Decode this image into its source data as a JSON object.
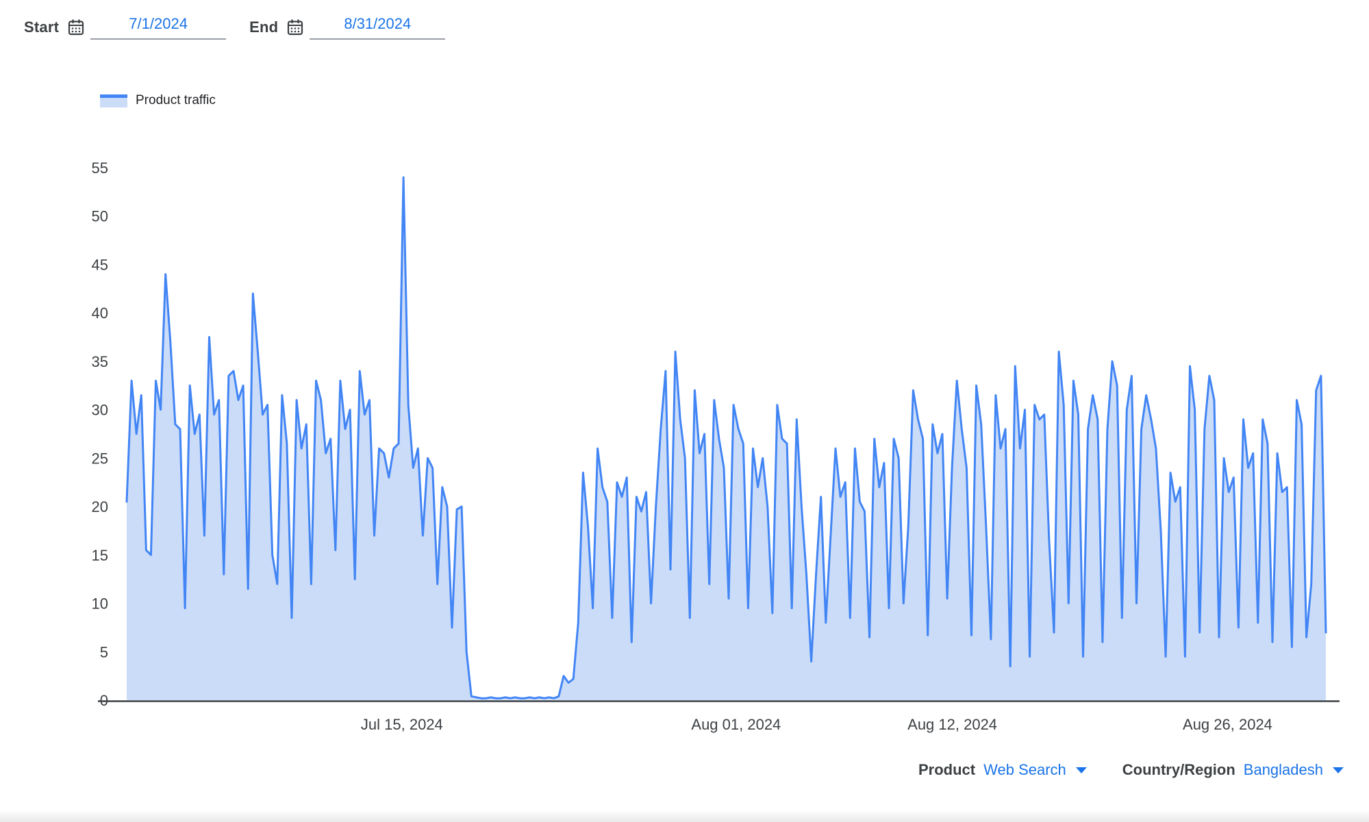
{
  "date_range": {
    "start_label": "Start",
    "start_value": "7/1/2024",
    "end_label": "End",
    "end_value": "8/31/2024"
  },
  "legend": {
    "label": "Product traffic"
  },
  "footer": {
    "product_label": "Product",
    "product_value": "Web Search",
    "region_label": "Country/Region",
    "region_value": "Bangladesh"
  },
  "icons": {
    "calendar": "calendar-icon",
    "dropdown": "chevron-down-icon"
  },
  "colors": {
    "line": "#4285f4",
    "fill": "#cbdcf9",
    "link_blue": "#1a73e8",
    "axis_text": "#3c4043",
    "baseline": "#3c4043"
  },
  "chart_data": {
    "type": "area",
    "title": "Product traffic",
    "xlabel": "",
    "ylabel": "",
    "x_start_date": "7/1/2024",
    "x_end_date": "8/31/2024",
    "days": 62,
    "points_per_day": 4,
    "ylim": [
      0,
      55
    ],
    "grid": false,
    "legend_position": "top-left",
    "y_ticks": [
      0,
      5,
      10,
      15,
      20,
      25,
      30,
      35,
      40,
      45,
      50,
      55
    ],
    "x_tick_labels": [
      {
        "label": "Jul 15, 2024",
        "day": 14
      },
      {
        "label": "Aug 01, 2024",
        "day": 31
      },
      {
        "label": "Aug 12, 2024",
        "day": 42
      },
      {
        "label": "Aug 26, 2024",
        "day": 56
      }
    ],
    "values": [
      20.5,
      33,
      27.5,
      31.5,
      15.5,
      15,
      33,
      30,
      44,
      37,
      28.5,
      28,
      9.5,
      32.5,
      27.5,
      29.5,
      17,
      37.5,
      29.5,
      31,
      13,
      33.5,
      34,
      31,
      32.5,
      11.5,
      42,
      36,
      29.5,
      30.5,
      15,
      12,
      31.5,
      26.5,
      8.5,
      31,
      26,
      28.5,
      12,
      33,
      31,
      25.5,
      27,
      15.5,
      33,
      28,
      30,
      12.5,
      34,
      29.5,
      31,
      17,
      26,
      25.5,
      23,
      26,
      26.5,
      54,
      30.5,
      24,
      26,
      17,
      25,
      24,
      12,
      22,
      20,
      7.5,
      19.7,
      20,
      5,
      0.4,
      0.3,
      0.2,
      0.2,
      0.3,
      0.2,
      0.2,
      0.3,
      0.2,
      0.3,
      0.2,
      0.2,
      0.3,
      0.2,
      0.3,
      0.2,
      0.3,
      0.2,
      0.4,
      2.5,
      1.8,
      2.2,
      8,
      23.5,
      18,
      9.5,
      26,
      22,
      20.5,
      8.5,
      22.5,
      21,
      23,
      6,
      21,
      19.5,
      21.5,
      10,
      20,
      28,
      34,
      13.5,
      36,
      29,
      25,
      8.5,
      32,
      25.5,
      27.5,
      12,
      31,
      27,
      24,
      10.5,
      30.5,
      28,
      26.5,
      9.5,
      26,
      22,
      25,
      20,
      9,
      30.5,
      27,
      26.5,
      9.5,
      29,
      20,
      13,
      4,
      13,
      21,
      8,
      17,
      26,
      21,
      22.5,
      8.5,
      26,
      20.5,
      19.5,
      6.5,
      27,
      22,
      24.5,
      9.5,
      27,
      25,
      10,
      18,
      32,
      29,
      27,
      6.7,
      28.5,
      25.5,
      27.5,
      10.5,
      24,
      33,
      28,
      24,
      6.7,
      32.5,
      28.5,
      18,
      6.3,
      31.5,
      26,
      28,
      3.5,
      34.5,
      26,
      30,
      4.5,
      30.5,
      29,
      29.5,
      16.5,
      7,
      36,
      30.5,
      10,
      33,
      29.5,
      4.5,
      28,
      31.5,
      29,
      6,
      28,
      35,
      32.5,
      8.5,
      30,
      33.5,
      10,
      28,
      31.5,
      29,
      26,
      17.5,
      4.5,
      23.5,
      20.5,
      22,
      4.5,
      34.5,
      30,
      7,
      28,
      33.5,
      31,
      6.5,
      25,
      21.5,
      23,
      7.5,
      29,
      24,
      25.5,
      8,
      29,
      26.5,
      6,
      25.5,
      21.5,
      22,
      5.5,
      31,
      28.5,
      6.5,
      12,
      32,
      33.5,
      7
    ]
  }
}
